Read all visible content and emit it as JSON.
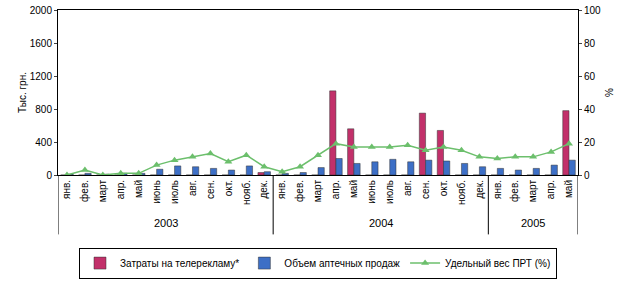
{
  "chart_data": {
    "type": "bar",
    "categories": [
      "янв.",
      "фев.",
      "март",
      "апр.",
      "май",
      "июнь",
      "июль",
      "авг.",
      "сен.",
      "окт.",
      "нояб.",
      "дек.",
      "янв.",
      "фев.",
      "март",
      "апр.",
      "май",
      "июнь",
      "июль",
      "авг.",
      "сен.",
      "окт.",
      "нояб.",
      "дек.",
      "янв.",
      "фев.",
      "март",
      "апр.",
      "май"
    ],
    "category_groups": [
      "2003",
      "2003",
      "2003",
      "2003",
      "2003",
      "2003",
      "2003",
      "2003",
      "2003",
      "2003",
      "2003",
      "2003",
      "2004",
      "2004",
      "2004",
      "2004",
      "2004",
      "2004",
      "2004",
      "2004",
      "2004",
      "2004",
      "2004",
      "2004",
      "2005",
      "2005",
      "2005",
      "2005",
      "2005"
    ],
    "y_label": "Тыс. грн.",
    "y2_label": "%",
    "ylim": [
      0,
      2000
    ],
    "yticks": [
      0,
      400,
      800,
      1200,
      1600,
      2000
    ],
    "y2lim": [
      0,
      100
    ],
    "y2ticks": [
      0,
      20,
      40,
      60,
      80,
      100
    ],
    "grid": false,
    "legend": "bottom",
    "series": [
      {
        "name": "Затраты на телерекламу*",
        "type": "bar",
        "color": "#c2306a",
        "values": [
          0,
          0,
          0,
          0,
          0,
          0,
          0,
          0,
          0,
          0,
          0,
          30,
          0,
          0,
          0,
          1020,
          560,
          0,
          0,
          0,
          750,
          540,
          0,
          0,
          0,
          0,
          0,
          0,
          780
        ]
      },
      {
        "name": "Объем аптечных продаж",
        "type": "bar",
        "color": "#3d6fc6",
        "values": [
          10,
          20,
          10,
          20,
          20,
          70,
          110,
          100,
          80,
          60,
          110,
          40,
          20,
          30,
          90,
          200,
          140,
          160,
          190,
          160,
          180,
          170,
          140,
          100,
          80,
          60,
          80,
          120,
          180
        ]
      },
      {
        "name": "Удельный вес ПРТ (%)",
        "type": "line",
        "axis": "y2",
        "color": "#6cbf6c",
        "marker": "triangle-up",
        "values": [
          0,
          3,
          0,
          1,
          1,
          6,
          9,
          11,
          13,
          8,
          12,
          5,
          2,
          5,
          12,
          19,
          17,
          17,
          17,
          18,
          15,
          17,
          15,
          11,
          10,
          11,
          11,
          14,
          19
        ]
      }
    ]
  }
}
